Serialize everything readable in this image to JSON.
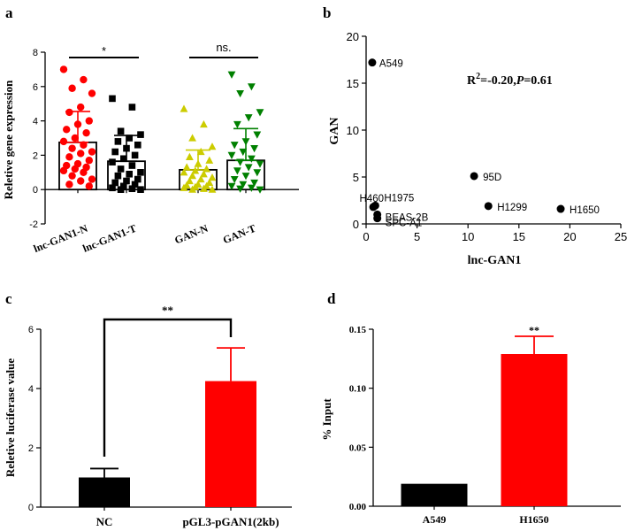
{
  "chart_data": [
    {
      "panel": "a",
      "type": "bar",
      "ylabel": "Reletive gene expression",
      "ylim": [
        -2,
        8
      ],
      "yticks": [
        "-2",
        "0",
        "2",
        "4",
        "6",
        "8"
      ],
      "categories": [
        "lnc-GAN1-N",
        "lnc-GAN1-T",
        "GAN-N",
        "GAN-T"
      ],
      "means": [
        2.75,
        1.65,
        1.15,
        1.7
      ],
      "sd": [
        1.8,
        1.5,
        1.15,
        1.85
      ],
      "colors": [
        "#ff0000",
        "#000000",
        "#cccc00",
        "#008000"
      ],
      "markers": [
        "circle",
        "square",
        "triangle",
        "inverted-triangle"
      ],
      "points": [
        [
          7.0,
          6.4,
          5.9,
          5.6,
          4.8,
          4.5,
          4.0,
          3.8,
          3.5,
          3.3,
          3.0,
          2.8,
          2.6,
          2.4,
          2.2,
          2.1,
          1.9,
          1.7,
          1.5,
          1.4,
          1.3,
          1.2,
          1.1,
          1.0,
          0.8,
          0.6,
          0.5,
          0.3,
          0.2
        ],
        [
          5.3,
          4.8,
          3.4,
          3.2,
          3.0,
          2.8,
          2.6,
          2.4,
          2.2,
          2.0,
          1.8,
          1.6,
          1.4,
          1.2,
          1.0,
          0.9,
          0.8,
          0.6,
          0.5,
          0.4,
          0.3,
          0.2,
          0.1,
          0.05,
          0.0,
          0.0
        ],
        [
          4.7,
          3.8,
          3.0,
          2.5,
          2.2,
          1.9,
          1.7,
          1.5,
          1.3,
          1.2,
          1.1,
          1.0,
          0.9,
          0.8,
          0.7,
          0.6,
          0.5,
          0.4,
          0.3,
          0.25,
          0.2,
          0.15,
          0.1,
          0.05,
          0.0,
          0.0
        ],
        [
          6.7,
          6.0,
          5.6,
          4.5,
          4.2,
          3.8,
          3.2,
          2.8,
          2.6,
          2.4,
          2.2,
          2.0,
          1.8,
          1.6,
          1.5,
          1.3,
          1.1,
          1.0,
          0.8,
          0.6,
          0.4,
          0.3,
          0.2,
          0.1,
          0.05,
          0.0
        ]
      ],
      "significance": [
        {
          "between": [
            0,
            1
          ],
          "label": "*"
        },
        {
          "between": [
            2,
            3
          ],
          "label": "ns."
        }
      ]
    },
    {
      "panel": "b",
      "type": "scatter",
      "xlabel": "lnc-GAN1",
      "ylabel": "GAN",
      "xlim": [
        0,
        25
      ],
      "ylim": [
        0,
        20
      ],
      "xticks": [
        "0",
        "5",
        "10",
        "15",
        "20",
        "25"
      ],
      "yticks": [
        "0",
        "5",
        "10",
        "15",
        "20"
      ],
      "annotation": {
        "r2_prefix": "R",
        "r2_sup": "2",
        "r2_value": "=-0.20,",
        "p_label": "P",
        "p_value": "=0.61"
      },
      "points": [
        {
          "label": "A549",
          "x": 0.6,
          "y": 17.2
        },
        {
          "label": "95D",
          "x": 10.6,
          "y": 5.1
        },
        {
          "label": "H1975",
          "x": 0.9,
          "y": 1.95
        },
        {
          "label": "H460",
          "x": 0.7,
          "y": 1.8
        },
        {
          "label": "BEAS-2B",
          "x": 1.1,
          "y": 1.0
        },
        {
          "label": "SPC-A1",
          "x": 1.1,
          "y": 0.6
        },
        {
          "label": "H1299",
          "x": 12.0,
          "y": 1.9
        },
        {
          "label": "H1650",
          "x": 19.1,
          "y": 1.6
        }
      ]
    },
    {
      "panel": "c",
      "type": "bar",
      "ylabel": "Reletive luciferase  value",
      "ylim": [
        0,
        6
      ],
      "yticks": [
        "0",
        "2",
        "4",
        "6"
      ],
      "categories": [
        "NC",
        "pGL3-pGAN1(2kb)"
      ],
      "values": [
        1.0,
        4.25
      ],
      "errors": [
        0.3,
        1.12
      ],
      "colors": [
        "#000000",
        "#ff0000"
      ],
      "significance": {
        "between": [
          0,
          1
        ],
        "label": "**"
      }
    },
    {
      "panel": "d",
      "type": "bar",
      "ylabel": "% Input",
      "ylim": [
        0,
        0.15
      ],
      "yticks": [
        "0.00",
        "0.05",
        "0.10",
        "0.15"
      ],
      "categories": [
        "A549",
        "H1650"
      ],
      "values": [
        0.019,
        0.129
      ],
      "errors": [
        0,
        0.015
      ],
      "colors": [
        "#000000",
        "#ff0000"
      ],
      "significance_label": "**"
    }
  ]
}
